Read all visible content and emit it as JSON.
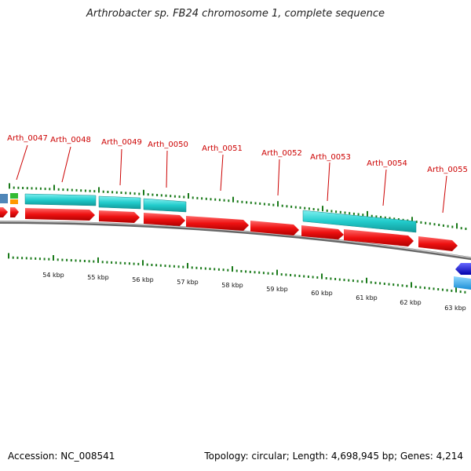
{
  "title": "Arthrobacter sp. FB24 chromosome 1, complete sequence",
  "accession": "Accession: NC_008541",
  "summary": "Topology: circular; Length: 4,698,945 bp; Genes: 4,214",
  "colors": {
    "forward_cds": "#ee1111",
    "reverse_cds": "#22cccc",
    "reverse_dark": "#1111dd",
    "label": "#cc0000",
    "ticks": "#1a7a1a",
    "backbone": "#888888"
  },
  "gene_labels": [
    "Arth_0047",
    "Arth_0048",
    "Arth_0049",
    "Arth_0050",
    "Arth_0051",
    "Arth_0052",
    "Arth_0053",
    "Arth_0054",
    "Arth_0055"
  ],
  "scale_labels": [
    "54 kbp",
    "55 kbp",
    "56 kbp",
    "57 kbp",
    "58 kbp",
    "59 kbp",
    "60 kbp",
    "61 kbp",
    "62 kbp",
    "63 kbp"
  ]
}
